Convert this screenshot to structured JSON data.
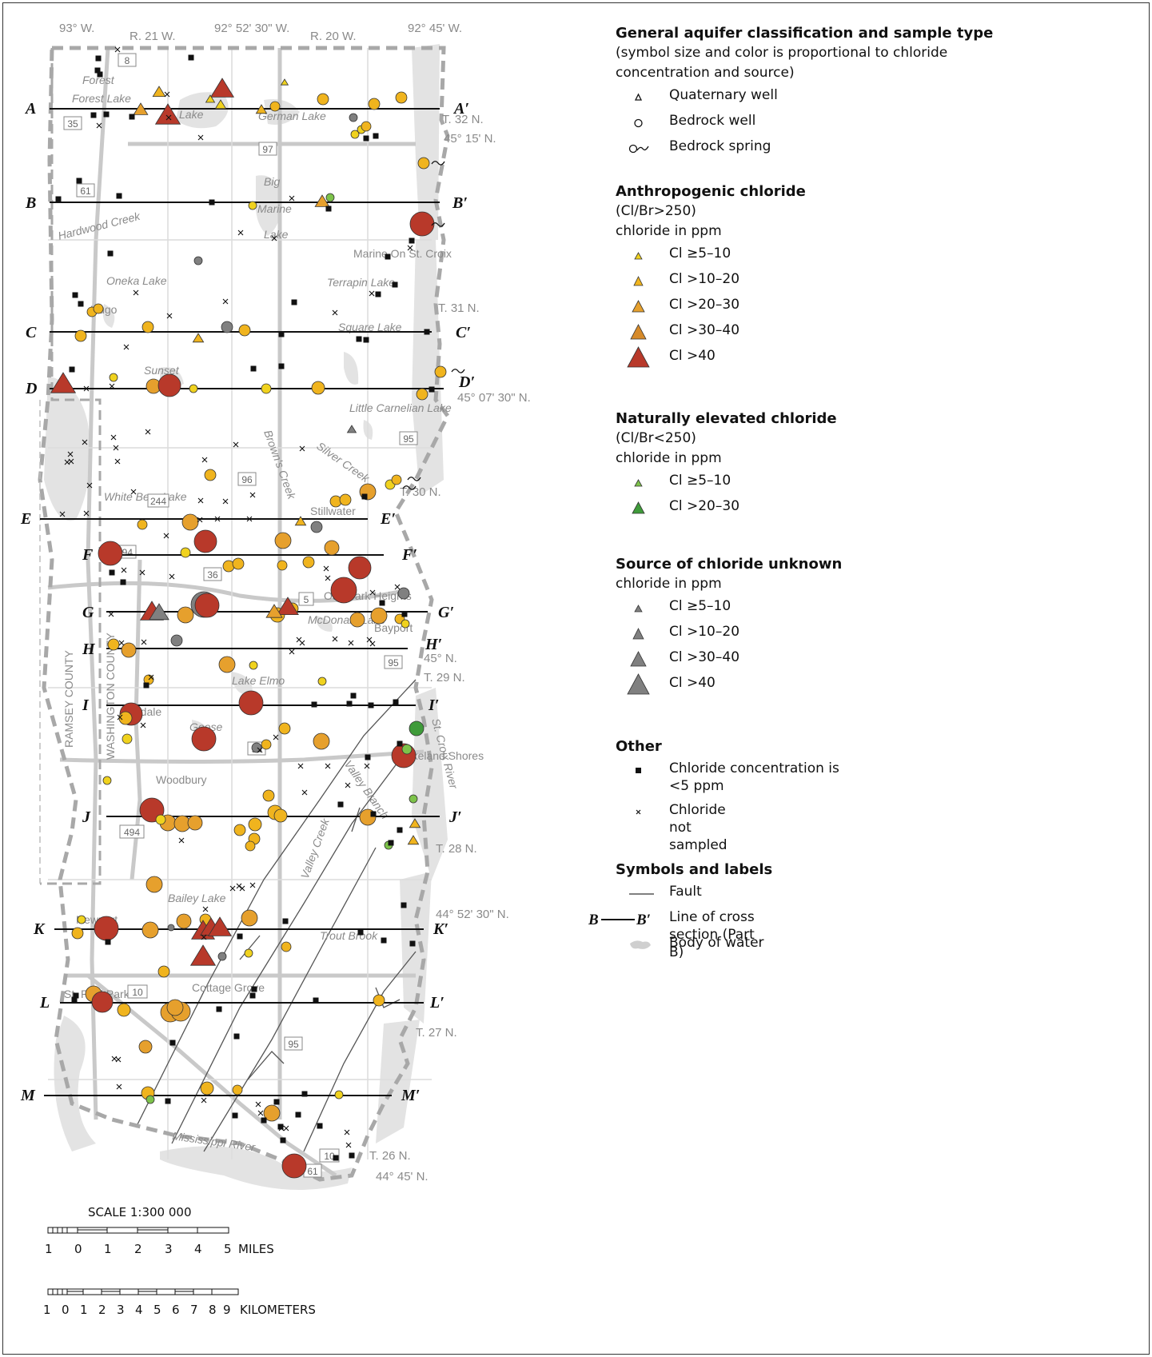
{
  "map": {
    "top_coords": [
      "93° W.",
      "R. 21 W.",
      "92° 52' 30\" W.",
      "R. 20 W.",
      "92° 45' W."
    ],
    "right_coords": [
      "T. 32 N.",
      "45° 15' N.",
      "T. 31 N.",
      "45° 07' 30\" N.",
      "T. 30 N.",
      "45° N.",
      "T. 29 N.",
      "T. 28 N.",
      "44° 52' 30\" N.",
      "T. 27 N.",
      "T. 26 N.",
      "44° 45' N."
    ],
    "county_labels": [
      "RAMSEY COUNTY",
      "WASHINGTON COUNTY"
    ],
    "places": [
      "Forest",
      "Forest Lake",
      "Lake",
      "German Lake",
      "Big",
      "Marine",
      "Lake",
      "Hardwood Creek",
      "Marine On St. Croix",
      "Oneka Lake",
      "Hugo",
      "Terrapin Lake",
      "Square Lake",
      "Sunset",
      "Little Carnelian Lake",
      "Brown's Creek",
      "Silver Creek",
      "White Bear Lake",
      "Stillwater",
      "Oak Park Heights",
      "McDonald Lake",
      "Bayport",
      "Lake Elmo",
      "Oakdale",
      "Goose",
      "Lakeland Shores",
      "Valley Branch",
      "Woodbury",
      "St. Croix River",
      "Valley Creek",
      "Newport",
      "Bailey Lake",
      "Trout Brook",
      "Cottage Grove",
      "St. Paul Park",
      "Mississippi River"
    ],
    "roads": [
      "8",
      "35",
      "97",
      "61",
      "96",
      "244",
      "95",
      "694",
      "36",
      "5",
      "94",
      "494",
      "10",
      "61"
    ],
    "sections": [
      {
        "start": "A",
        "end": "A′"
      },
      {
        "start": "B",
        "end": "B′"
      },
      {
        "start": "C",
        "end": "C′"
      },
      {
        "start": "D",
        "end": "D′"
      },
      {
        "start": "E",
        "end": "E′"
      },
      {
        "start": "F",
        "end": "F′"
      },
      {
        "start": "G",
        "end": "G′"
      },
      {
        "start": "H",
        "end": "H′"
      },
      {
        "start": "I",
        "end": "I′"
      },
      {
        "start": "J",
        "end": "J′"
      },
      {
        "start": "K",
        "end": "K′"
      },
      {
        "start": "L",
        "end": "L′"
      },
      {
        "start": "M",
        "end": "M′"
      }
    ],
    "scale_title": "SCALE 1:300 000",
    "miles_ticks": [
      "1",
      "0",
      "1",
      "2",
      "3",
      "4",
      "5"
    ],
    "miles_unit": "MILES",
    "km_ticks": [
      "1",
      "0",
      "1",
      "2",
      "3",
      "4",
      "5",
      "6",
      "7",
      "8",
      "9"
    ],
    "km_unit": "KILOMETERS"
  },
  "legend": {
    "general": {
      "title": "General aquifer classification and sample type",
      "note": "(symbol size and color is proportional to chloride concentration and source)",
      "items": [
        "Quaternary well",
        "Bedrock well",
        "Bedrock spring"
      ]
    },
    "anthropogenic": {
      "title": "Anthropogenic chloride",
      "ratio": "(Cl/Br>250)",
      "unit": "chloride in ppm",
      "items": [
        "Cl ≥5–10",
        "Cl >10–20",
        "Cl >20–30",
        "Cl >30–40",
        "Cl >40"
      ],
      "colors": [
        "#f0d21e",
        "#f0b41e",
        "#e6a02d",
        "#d68a2a",
        "#b8392a"
      ]
    },
    "natural": {
      "title": "Naturally elevated chloride",
      "ratio": "(Cl/Br<250)",
      "unit": "chloride in ppm",
      "items": [
        "Cl ≥5–10",
        "Cl >20–30"
      ],
      "colors": [
        "#7dc34a",
        "#3f9b3a"
      ]
    },
    "unknown": {
      "title": "Source of chloride unknown",
      "unit": "chloride in ppm",
      "items": [
        "Cl ≥5–10",
        "Cl >10–20",
        "Cl >30–40",
        "Cl >40"
      ],
      "color": "#808080"
    },
    "other": {
      "title": "Other",
      "items": [
        "Chloride concentration is <5 ppm",
        "Chloride not sampled"
      ]
    },
    "symbols": {
      "title": "Symbols and labels",
      "fault": "Fault",
      "section_start": "B",
      "section_end": "B′",
      "section_label": "Line of cross section (Part B)",
      "water": "Body of water"
    }
  }
}
